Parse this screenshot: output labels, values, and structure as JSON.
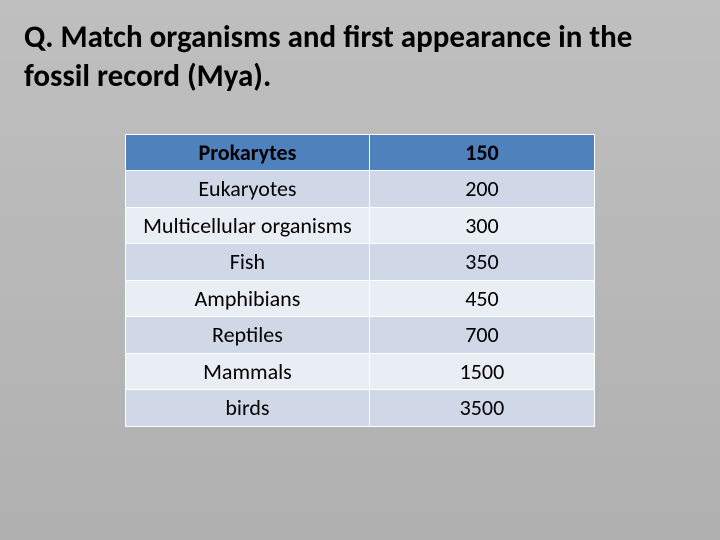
{
  "title": "Q.  Match organisms and first appearance in the fossil record (Mya).",
  "table": {
    "columns": [
      "organism",
      "value"
    ],
    "col_widths": [
      "52%",
      "48%"
    ],
    "header_bg": "#4f81bd",
    "band_colors": [
      "#d0d8e8",
      "#e9edf4"
    ],
    "border_color": "#ffffff",
    "cell_fontsize": 22,
    "rows": [
      {
        "organism": "Prokarytes",
        "value": "150",
        "is_header": true
      },
      {
        "organism": "Eukaryotes",
        "value": "200",
        "band": 0
      },
      {
        "organism": "Multicellular organisms",
        "value": "300",
        "band": 1
      },
      {
        "organism": "Fish",
        "value": "350",
        "band": 0
      },
      {
        "organism": "Amphibians",
        "value": "450",
        "band": 1
      },
      {
        "organism": "Reptiles",
        "value": "700",
        "band": 0
      },
      {
        "organism": "Mammals",
        "value": "1500",
        "band": 1
      },
      {
        "organism": "birds",
        "value": "3500",
        "band": 0
      }
    ]
  }
}
